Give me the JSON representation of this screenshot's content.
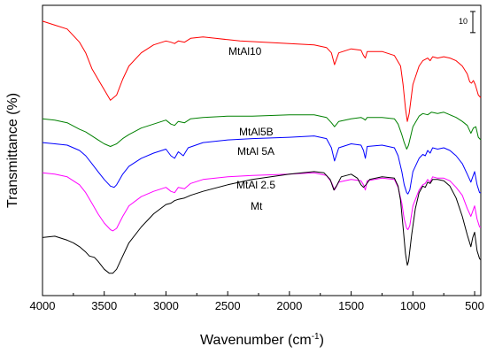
{
  "chart_data": {
    "type": "line",
    "xlabel_main": "Wavenumber (cm",
    "xlabel_sup": "-1",
    "xlabel_end": ")",
    "ylabel": "Transmittance (%)",
    "x_range": [
      4000,
      450
    ],
    "x_reversed": true,
    "x_ticks": [
      4000,
      3500,
      3000,
      2500,
      2000,
      1500,
      1000,
      500
    ],
    "y_ticks_labeled": false,
    "grid": false,
    "legend": "none (labels placed on curves)",
    "scale_bar_label": "10",
    "scale_bar_units": 10,
    "series": [
      {
        "name": "MtAl10",
        "color": "#ff0000",
        "points": [
          [
            4000,
            96
          ],
          [
            3900,
            94.5
          ],
          [
            3800,
            93
          ],
          [
            3700,
            88
          ],
          [
            3650,
            84
          ],
          [
            3600,
            78
          ],
          [
            3550,
            74
          ],
          [
            3500,
            70
          ],
          [
            3450,
            66
          ],
          [
            3400,
            68
          ],
          [
            3350,
            74
          ],
          [
            3300,
            79
          ],
          [
            3200,
            84
          ],
          [
            3100,
            87
          ],
          [
            3000,
            88.5
          ],
          [
            2960,
            88
          ],
          [
            2930,
            87.5
          ],
          [
            2900,
            88.5
          ],
          [
            2850,
            88
          ],
          [
            2800,
            89.5
          ],
          [
            2700,
            90
          ],
          [
            2600,
            89.5
          ],
          [
            2500,
            89
          ],
          [
            2400,
            88.5
          ],
          [
            2200,
            88
          ],
          [
            2000,
            87.5
          ],
          [
            1800,
            87
          ],
          [
            1700,
            86
          ],
          [
            1660,
            84
          ],
          [
            1635,
            79.5
          ],
          [
            1600,
            84
          ],
          [
            1500,
            85.5
          ],
          [
            1420,
            85
          ],
          [
            1400,
            83
          ],
          [
            1385,
            82
          ],
          [
            1370,
            84.5
          ],
          [
            1250,
            84.5
          ],
          [
            1150,
            83
          ],
          [
            1100,
            79
          ],
          [
            1080,
            72
          ],
          [
            1060,
            63
          ],
          [
            1045,
            58
          ],
          [
            1030,
            61
          ],
          [
            1000,
            72
          ],
          [
            950,
            79
          ],
          [
            920,
            81
          ],
          [
            900,
            81.5
          ],
          [
            880,
            82
          ],
          [
            860,
            81
          ],
          [
            840,
            82.5
          ],
          [
            800,
            82
          ],
          [
            750,
            82.5
          ],
          [
            700,
            82
          ],
          [
            650,
            81
          ],
          [
            600,
            79
          ],
          [
            560,
            76
          ],
          [
            540,
            73
          ],
          [
            525,
            72.5
          ],
          [
            510,
            73.5
          ],
          [
            495,
            72
          ],
          [
            470,
            68
          ],
          [
            450,
            67
          ]
        ]
      },
      {
        "name": "MtAl5B",
        "color": "#008000",
        "points": [
          [
            4000,
            59
          ],
          [
            3900,
            58.5
          ],
          [
            3800,
            57.5
          ],
          [
            3700,
            55
          ],
          [
            3650,
            54
          ],
          [
            3600,
            52.5
          ],
          [
            3550,
            51
          ],
          [
            3500,
            49.5
          ],
          [
            3450,
            48.5
          ],
          [
            3400,
            49.5
          ],
          [
            3350,
            51.5
          ],
          [
            3300,
            53
          ],
          [
            3200,
            55.5
          ],
          [
            3100,
            57
          ],
          [
            3000,
            58.5
          ],
          [
            2960,
            57
          ],
          [
            2930,
            56.5
          ],
          [
            2900,
            58
          ],
          [
            2850,
            57.5
          ],
          [
            2800,
            59
          ],
          [
            2700,
            59.5
          ],
          [
            2500,
            60
          ],
          [
            2300,
            60
          ],
          [
            2000,
            60.5
          ],
          [
            1800,
            60.5
          ],
          [
            1700,
            59.5
          ],
          [
            1660,
            57.5
          ],
          [
            1635,
            56
          ],
          [
            1600,
            58
          ],
          [
            1500,
            59
          ],
          [
            1420,
            59.5
          ],
          [
            1400,
            59
          ],
          [
            1385,
            58.5
          ],
          [
            1370,
            59.5
          ],
          [
            1250,
            59.5
          ],
          [
            1150,
            59
          ],
          [
            1120,
            57
          ],
          [
            1090,
            53
          ],
          [
            1070,
            50
          ],
          [
            1050,
            47.5
          ],
          [
            1035,
            49
          ],
          [
            1000,
            56
          ],
          [
            950,
            60
          ],
          [
            920,
            61
          ],
          [
            880,
            60.5
          ],
          [
            850,
            61.5
          ],
          [
            800,
            61
          ],
          [
            750,
            61.5
          ],
          [
            700,
            60.5
          ],
          [
            650,
            59.5
          ],
          [
            600,
            58
          ],
          [
            560,
            56.5
          ],
          [
            530,
            53.5
          ],
          [
            510,
            55.5
          ],
          [
            490,
            56
          ],
          [
            470,
            52
          ],
          [
            450,
            51
          ]
        ]
      },
      {
        "name": "MtAl 5A",
        "color": "#0000ff",
        "points": [
          [
            4000,
            50
          ],
          [
            3900,
            49.5
          ],
          [
            3800,
            49
          ],
          [
            3700,
            47
          ],
          [
            3650,
            45
          ],
          [
            3600,
            42
          ],
          [
            3550,
            39
          ],
          [
            3500,
            36
          ],
          [
            3450,
            33.5
          ],
          [
            3420,
            33
          ],
          [
            3400,
            34
          ],
          [
            3350,
            38
          ],
          [
            3300,
            41
          ],
          [
            3200,
            44
          ],
          [
            3100,
            46
          ],
          [
            3000,
            47.5
          ],
          [
            2960,
            45
          ],
          [
            2930,
            44
          ],
          [
            2900,
            46.5
          ],
          [
            2860,
            45
          ],
          [
            2820,
            48
          ],
          [
            2700,
            50
          ],
          [
            2500,
            51
          ],
          [
            2300,
            51.5
          ],
          [
            2000,
            52
          ],
          [
            1800,
            52.5
          ],
          [
            1700,
            51.5
          ],
          [
            1660,
            48
          ],
          [
            1635,
            43
          ],
          [
            1600,
            48
          ],
          [
            1500,
            49.5
          ],
          [
            1420,
            49
          ],
          [
            1400,
            47
          ],
          [
            1385,
            44
          ],
          [
            1370,
            48.5
          ],
          [
            1250,
            49
          ],
          [
            1150,
            48
          ],
          [
            1120,
            45
          ],
          [
            1090,
            39
          ],
          [
            1070,
            34
          ],
          [
            1050,
            31
          ],
          [
            1040,
            30.5
          ],
          [
            1025,
            32
          ],
          [
            1000,
            39
          ],
          [
            950,
            44
          ],
          [
            920,
            45.5
          ],
          [
            900,
            45
          ],
          [
            880,
            47
          ],
          [
            860,
            46
          ],
          [
            840,
            48
          ],
          [
            800,
            47.5
          ],
          [
            750,
            48
          ],
          [
            700,
            47
          ],
          [
            650,
            45
          ],
          [
            600,
            42
          ],
          [
            560,
            38
          ],
          [
            530,
            35
          ],
          [
            515,
            37
          ],
          [
            500,
            39
          ],
          [
            480,
            34
          ],
          [
            460,
            31
          ],
          [
            450,
            31
          ]
        ]
      },
      {
        "name": "MtAl 2.5",
        "color": "#ff00ff",
        "points": [
          [
            4000,
            38.5
          ],
          [
            3900,
            38
          ],
          [
            3800,
            37
          ],
          [
            3700,
            34
          ],
          [
            3650,
            31
          ],
          [
            3600,
            27
          ],
          [
            3550,
            23
          ],
          [
            3500,
            19.5
          ],
          [
            3450,
            17
          ],
          [
            3430,
            16.5
          ],
          [
            3400,
            17.5
          ],
          [
            3350,
            22
          ],
          [
            3300,
            26
          ],
          [
            3200,
            29.5
          ],
          [
            3100,
            31.5
          ],
          [
            3000,
            33
          ],
          [
            2960,
            31.5
          ],
          [
            2930,
            31
          ],
          [
            2900,
            33
          ],
          [
            2850,
            32.5
          ],
          [
            2800,
            34.5
          ],
          [
            2700,
            36
          ],
          [
            2500,
            37
          ],
          [
            2300,
            37.5
          ],
          [
            2000,
            38
          ],
          [
            1800,
            38.5
          ],
          [
            1700,
            37.5
          ],
          [
            1660,
            35
          ],
          [
            1635,
            32
          ],
          [
            1600,
            35
          ],
          [
            1500,
            36
          ],
          [
            1420,
            35.5
          ],
          [
            1400,
            34
          ],
          [
            1385,
            32
          ],
          [
            1370,
            35.5
          ],
          [
            1250,
            36.5
          ],
          [
            1150,
            36
          ],
          [
            1120,
            33
          ],
          [
            1090,
            27
          ],
          [
            1070,
            21
          ],
          [
            1050,
            17.5
          ],
          [
            1040,
            17
          ],
          [
            1025,
            18.5
          ],
          [
            1000,
            26
          ],
          [
            950,
            32
          ],
          [
            920,
            34
          ],
          [
            900,
            34.5
          ],
          [
            880,
            36
          ],
          [
            860,
            35
          ],
          [
            840,
            37
          ],
          [
            800,
            36.5
          ],
          [
            750,
            36.5
          ],
          [
            700,
            35.5
          ],
          [
            650,
            33
          ],
          [
            600,
            30
          ],
          [
            560,
            25
          ],
          [
            530,
            22
          ],
          [
            515,
            24
          ],
          [
            500,
            26
          ],
          [
            480,
            21
          ],
          [
            460,
            18
          ],
          [
            450,
            18
          ]
        ]
      },
      {
        "name": "Mt",
        "color": "#000000",
        "points": [
          [
            4000,
            14
          ],
          [
            3900,
            14.5
          ],
          [
            3800,
            13
          ],
          [
            3750,
            12
          ],
          [
            3700,
            10.5
          ],
          [
            3650,
            8.5
          ],
          [
            3620,
            7
          ],
          [
            3580,
            6.5
          ],
          [
            3550,
            5
          ],
          [
            3500,
            2
          ],
          [
            3460,
            0.5
          ],
          [
            3430,
            0.5
          ],
          [
            3400,
            2
          ],
          [
            3350,
            7
          ],
          [
            3300,
            12
          ],
          [
            3200,
            18
          ],
          [
            3100,
            23
          ],
          [
            3000,
            26.5
          ],
          [
            2960,
            27
          ],
          [
            2930,
            28
          ],
          [
            2900,
            28.5
          ],
          [
            2850,
            29
          ],
          [
            2800,
            30
          ],
          [
            2700,
            31.5
          ],
          [
            2500,
            34
          ],
          [
            2300,
            36
          ],
          [
            2000,
            38
          ],
          [
            1800,
            39
          ],
          [
            1720,
            38.5
          ],
          [
            1670,
            36
          ],
          [
            1640,
            32
          ],
          [
            1620,
            33.5
          ],
          [
            1580,
            37
          ],
          [
            1500,
            38
          ],
          [
            1450,
            36.5
          ],
          [
            1420,
            34
          ],
          [
            1400,
            33
          ],
          [
            1380,
            34
          ],
          [
            1350,
            36
          ],
          [
            1250,
            37
          ],
          [
            1150,
            36.5
          ],
          [
            1120,
            33.5
          ],
          [
            1100,
            28
          ],
          [
            1080,
            18
          ],
          [
            1060,
            8
          ],
          [
            1045,
            3.5
          ],
          [
            1035,
            5
          ],
          [
            1010,
            15
          ],
          [
            980,
            25
          ],
          [
            950,
            31
          ],
          [
            920,
            33.5
          ],
          [
            900,
            33
          ],
          [
            880,
            35
          ],
          [
            860,
            34.5
          ],
          [
            840,
            36
          ],
          [
            800,
            36
          ],
          [
            750,
            35.5
          ],
          [
            700,
            33.5
          ],
          [
            650,
            29
          ],
          [
            600,
            22
          ],
          [
            560,
            15
          ],
          [
            530,
            10.5
          ],
          [
            515,
            14
          ],
          [
            500,
            16
          ],
          [
            480,
            9
          ],
          [
            460,
            6
          ],
          [
            450,
            5.5
          ]
        ]
      }
    ],
    "annotations": [
      {
        "text": "MtAl10",
        "series": "MtAl10"
      },
      {
        "text": "MtAl5B",
        "series": "MtAl5B"
      },
      {
        "text": "MtAl 5A",
        "series": "MtAl 5A"
      },
      {
        "text": "MtAl 2.5",
        "series": "MtAl 2.5"
      },
      {
        "text": "Mt",
        "series": "Mt"
      }
    ]
  }
}
